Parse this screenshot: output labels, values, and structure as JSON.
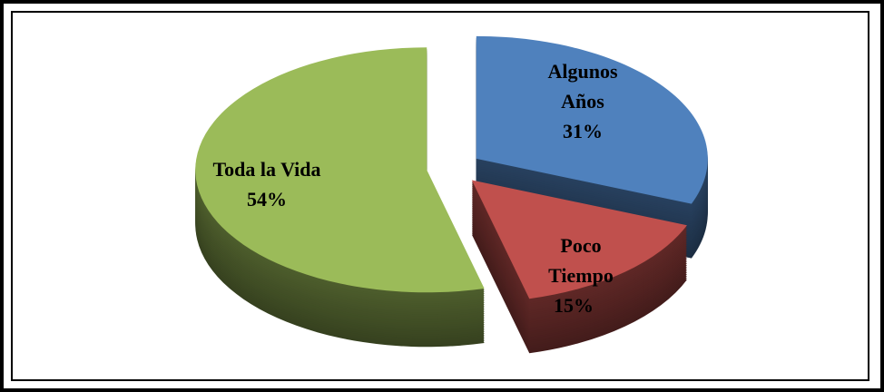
{
  "chart_data": {
    "type": "pie",
    "categories": [
      "Algunos Años",
      "Poco Tiempo",
      "Toda la Vida"
    ],
    "values": [
      31,
      15,
      54
    ],
    "value_labels": [
      "31%",
      "15%",
      "54%"
    ],
    "colors": [
      "#4f81bd",
      "#c0504d",
      "#9bbb59"
    ]
  }
}
